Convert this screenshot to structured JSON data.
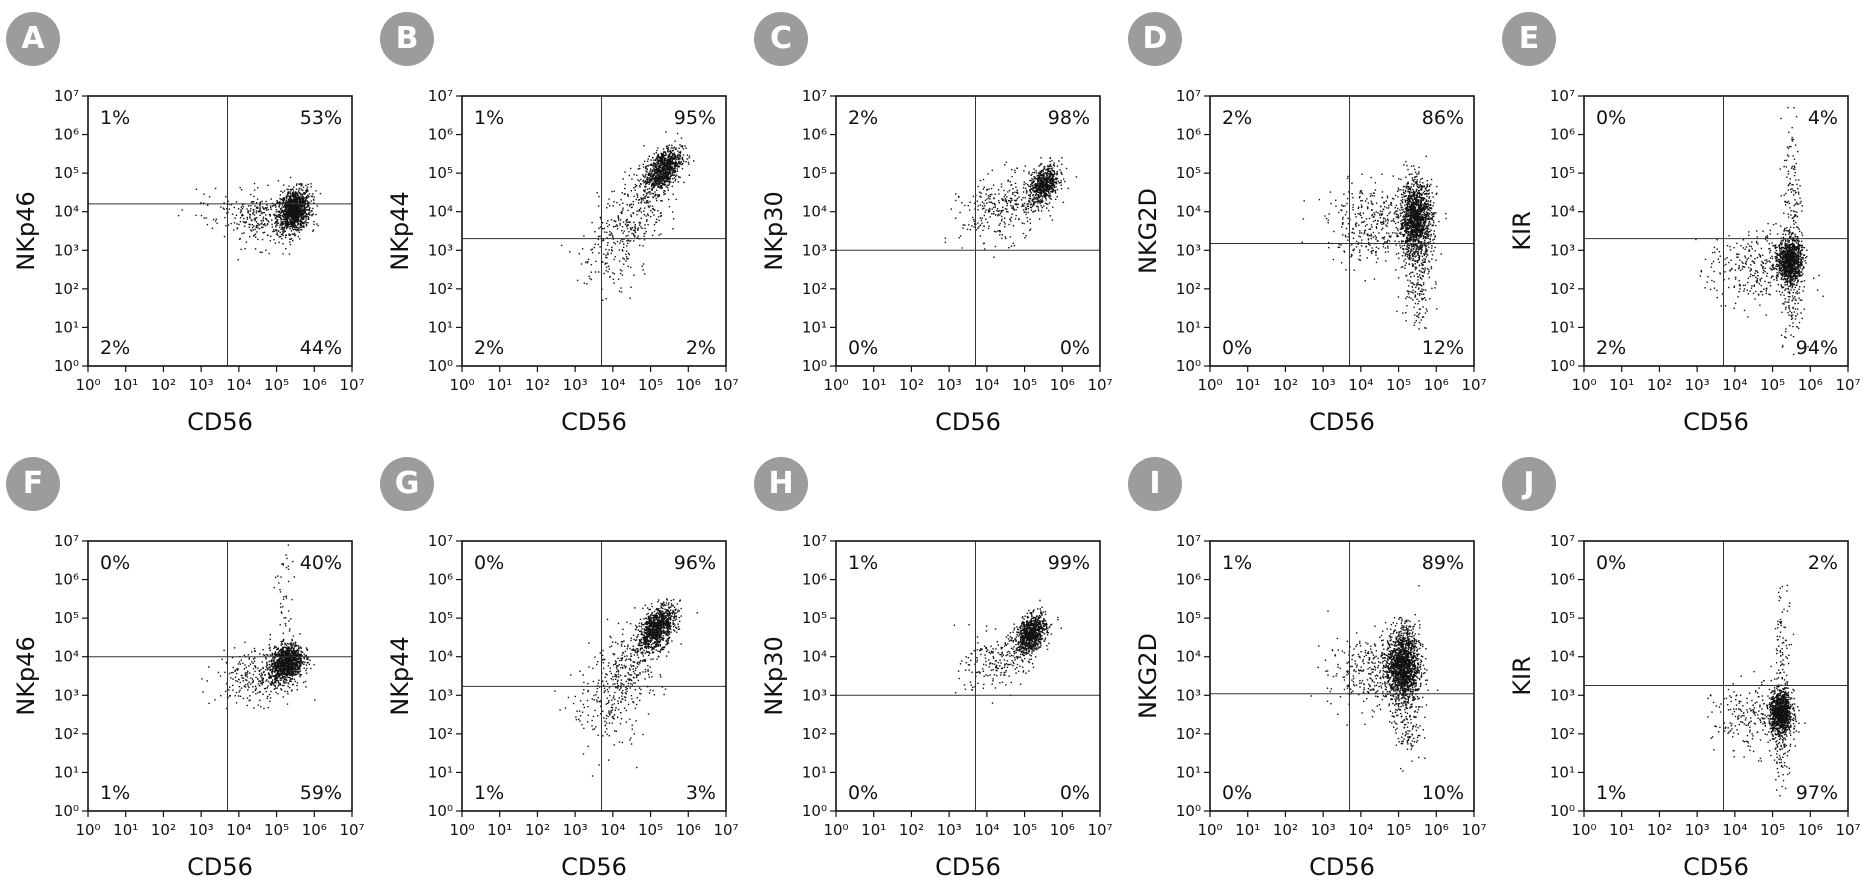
{
  "figure": {
    "colors": {
      "badge": "#9c9c9c",
      "axis": "#111111",
      "points": "#111111",
      "gate": "#333333"
    },
    "tick_labels": [
      "10⁰",
      "10¹",
      "10²",
      "10³",
      "10⁴",
      "10⁵",
      "10⁶",
      "10⁷"
    ]
  },
  "chart_data": [
    {
      "label": "A",
      "type": "scatter",
      "xlabel": "CD56",
      "ylabel": "NKp46",
      "xscale": "log",
      "yscale": "log",
      "xlim": [
        1,
        10000000
      ],
      "ylim": [
        1,
        10000000
      ],
      "gate": {
        "x": 5000,
        "y": 16000
      },
      "quadrants": {
        "ul": "1%",
        "ur": "53%",
        "ll": "2%",
        "lr": "44%"
      }
    },
    {
      "label": "B",
      "type": "scatter",
      "xlabel": "CD56",
      "ylabel": "NKp44",
      "xscale": "log",
      "yscale": "log",
      "xlim": [
        1,
        10000000
      ],
      "ylim": [
        1,
        10000000
      ],
      "gate": {
        "x": 5000,
        "y": 2000
      },
      "quadrants": {
        "ul": "1%",
        "ur": "95%",
        "ll": "2%",
        "lr": "2%"
      }
    },
    {
      "label": "C",
      "type": "scatter",
      "xlabel": "CD56",
      "ylabel": "NKp30",
      "xscale": "log",
      "yscale": "log",
      "xlim": [
        1,
        10000000
      ],
      "ylim": [
        1,
        10000000
      ],
      "gate": {
        "x": 5000,
        "y": 1000
      },
      "quadrants": {
        "ul": "2%",
        "ur": "98%",
        "ll": "0%",
        "lr": "0%"
      }
    },
    {
      "label": "D",
      "type": "scatter",
      "xlabel": "CD56",
      "ylabel": "NKG2D",
      "xscale": "log",
      "yscale": "log",
      "xlim": [
        1,
        10000000
      ],
      "ylim": [
        1,
        10000000
      ],
      "gate": {
        "x": 5000,
        "y": 1500
      },
      "quadrants": {
        "ul": "2%",
        "ur": "86%",
        "ll": "0%",
        "lr": "12%"
      }
    },
    {
      "label": "E",
      "type": "scatter",
      "xlabel": "CD56",
      "ylabel": "KIR",
      "xscale": "log",
      "yscale": "log",
      "xlim": [
        1,
        10000000
      ],
      "ylim": [
        1,
        10000000
      ],
      "gate": {
        "x": 5000,
        "y": 2000
      },
      "quadrants": {
        "ul": "0%",
        "ur": "4%",
        "ll": "2%",
        "lr": "94%"
      }
    },
    {
      "label": "F",
      "type": "scatter",
      "xlabel": "CD56",
      "ylabel": "NKp46",
      "xscale": "log",
      "yscale": "log",
      "xlim": [
        1,
        10000000
      ],
      "ylim": [
        1,
        10000000
      ],
      "gate": {
        "x": 5000,
        "y": 10000
      },
      "quadrants": {
        "ul": "0%",
        "ur": "40%",
        "ll": "1%",
        "lr": "59%"
      }
    },
    {
      "label": "G",
      "type": "scatter",
      "xlabel": "CD56",
      "ylabel": "NKp44",
      "xscale": "log",
      "yscale": "log",
      "xlim": [
        1,
        10000000
      ],
      "ylim": [
        1,
        10000000
      ],
      "gate": {
        "x": 5000,
        "y": 1700
      },
      "quadrants": {
        "ul": "0%",
        "ur": "96%",
        "ll": "1%",
        "lr": "3%"
      }
    },
    {
      "label": "H",
      "type": "scatter",
      "xlabel": "CD56",
      "ylabel": "NKp30",
      "xscale": "log",
      "yscale": "log",
      "xlim": [
        1,
        10000000
      ],
      "ylim": [
        1,
        10000000
      ],
      "gate": {
        "x": 5000,
        "y": 1000
      },
      "quadrants": {
        "ul": "1%",
        "ur": "99%",
        "ll": "0%",
        "lr": "0%"
      }
    },
    {
      "label": "I",
      "type": "scatter",
      "xlabel": "CD56",
      "ylabel": "NKG2D",
      "xscale": "log",
      "yscale": "log",
      "xlim": [
        1,
        10000000
      ],
      "ylim": [
        1,
        10000000
      ],
      "gate": {
        "x": 5000,
        "y": 1100
      },
      "quadrants": {
        "ul": "1%",
        "ur": "89%",
        "ll": "0%",
        "lr": "10%"
      }
    },
    {
      "label": "J",
      "type": "scatter",
      "xlabel": "CD56",
      "ylabel": "KIR",
      "xscale": "log",
      "yscale": "log",
      "xlim": [
        1,
        10000000
      ],
      "ylim": [
        1,
        10000000
      ],
      "gate": {
        "x": 5000,
        "y": 1800
      },
      "quadrants": {
        "ul": "0%",
        "ur": "2%",
        "ll": "1%",
        "lr": "97%"
      }
    }
  ]
}
